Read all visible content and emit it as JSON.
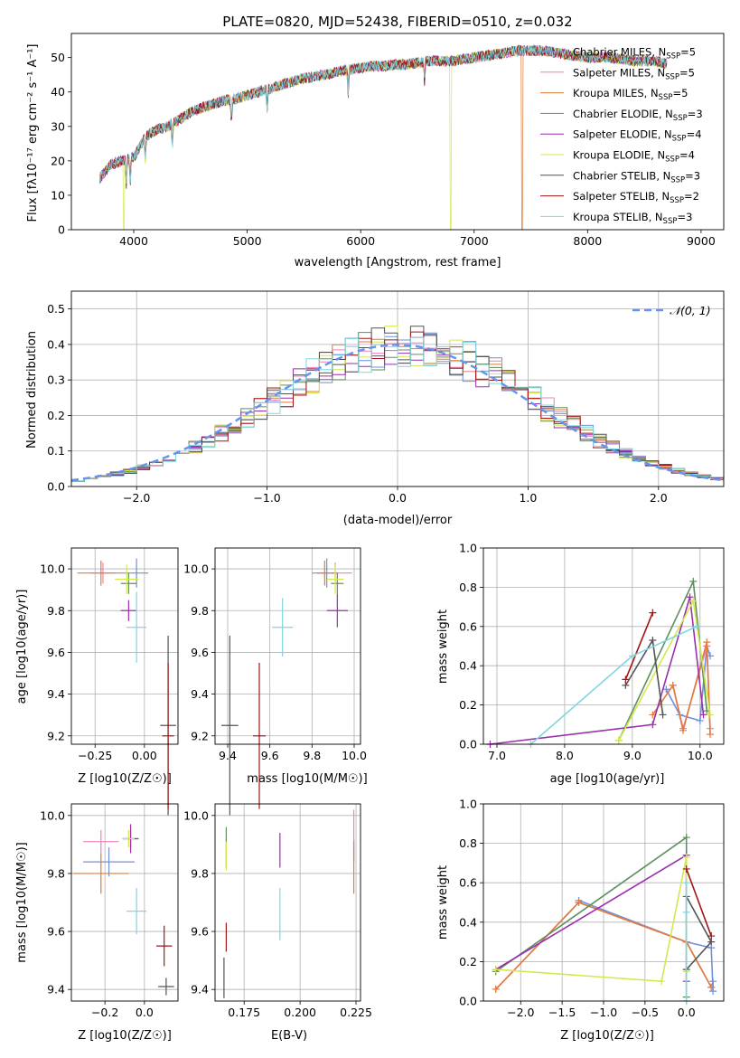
{
  "colors": {
    "chabrier_miles": "#6f8fdc",
    "salpeter_miles": "#f07fbe",
    "kroupa_miles": "#e07b39",
    "chabrier_elodie": "#5f8f5f",
    "salpeter_elodie": "#9b2fae",
    "kroupa_elodie": "#d4e84e",
    "chabrier_stelib": "#545454",
    "salpeter_stelib": "#a31515",
    "kroupa_stelib": "#7fd6e0",
    "normal_curve": "#6495ed",
    "grid": "#b0b0b0"
  },
  "chart_data": [
    {
      "id": "spectrum",
      "type": "line",
      "title": "PLATE=0820, MJD=52438, FIBERID=0510, z=0.032",
      "xlabel": "wavelength [Angstrom, rest frame]",
      "ylabel": "Flux [fλ10⁻¹⁷ erg cm⁻² s⁻¹ A⁻¹]",
      "xlim": [
        3450,
        9200
      ],
      "ylim": [
        0,
        57
      ],
      "xticks": [
        4000,
        5000,
        6000,
        7000,
        8000,
        9000
      ],
      "yticks": [
        0,
        10,
        20,
        30,
        40,
        50
      ],
      "grid": false,
      "legend_position": "top-right",
      "legend": [
        "Chabrier MILES, N_SSP=5",
        "Salpeter MILES, N_SSP=5",
        "Kroupa MILES, N_SSP=5",
        "Chabrier ELODIE, N_SSP=3",
        "Salpeter ELODIE, N_SSP=4",
        "Kroupa ELODIE, N_SSP=4",
        "Chabrier STELIB, N_SSP=3",
        "Salpeter STELIB, N_SSP=2",
        "Kroupa STELIB, N_SSP=3"
      ],
      "continuum": [
        [
          3700,
          15
        ],
        [
          3800,
          19
        ],
        [
          3900,
          20
        ],
        [
          4000,
          21
        ],
        [
          4100,
          27
        ],
        [
          4200,
          29
        ],
        [
          4300,
          30
        ],
        [
          4400,
          32
        ],
        [
          4500,
          34
        ],
        [
          4600,
          35.5
        ],
        [
          4700,
          36.5
        ],
        [
          4800,
          37.5
        ],
        [
          4900,
          38
        ],
        [
          5000,
          39
        ],
        [
          5100,
          40
        ],
        [
          5200,
          41
        ],
        [
          5300,
          42
        ],
        [
          5400,
          43
        ],
        [
          5500,
          44
        ],
        [
          5600,
          44.5
        ],
        [
          5700,
          45
        ],
        [
          5800,
          46
        ],
        [
          5900,
          46.5
        ],
        [
          6000,
          47
        ],
        [
          6100,
          47.5
        ],
        [
          6200,
          47.5
        ],
        [
          6300,
          48
        ],
        [
          6400,
          48
        ],
        [
          6500,
          48.5
        ],
        [
          6600,
          49
        ],
        [
          6700,
          49
        ],
        [
          6800,
          49
        ],
        [
          6900,
          49.5
        ],
        [
          7000,
          50
        ],
        [
          7200,
          51
        ],
        [
          7400,
          52
        ],
        [
          7600,
          52
        ],
        [
          7800,
          51
        ],
        [
          8000,
          50
        ],
        [
          8200,
          50
        ],
        [
          8400,
          49
        ],
        [
          8600,
          49
        ],
        [
          8700,
          48
        ]
      ]
    },
    {
      "id": "residuals",
      "type": "histogram",
      "xlabel": "(data-model)/error",
      "ylabel": "Normed distribution",
      "xlim": [
        -2.5,
        2.5
      ],
      "ylim": [
        0,
        0.55
      ],
      "xticks": [
        -2,
        -1,
        0,
        1,
        2
      ],
      "yticks": [
        0.0,
        0.1,
        0.2,
        0.3,
        0.4,
        0.5
      ],
      "grid": true,
      "legend_position": "top-right",
      "legend": [
        "𝒩(0, 1)"
      ],
      "bin_width": 0.1
    },
    {
      "id": "age_vs_Z",
      "type": "errorbar",
      "xlabel": "Z [log10(Z/Z☉)]",
      "ylabel": "age  [log10(age/yr)]",
      "xlim": [
        -0.37,
        0.17
      ],
      "ylim": [
        9.16,
        10.1
      ],
      "xticks": [
        -0.25,
        0.0
      ],
      "yticks": [
        9.2,
        9.4,
        9.6,
        9.8,
        10.0
      ],
      "grid": true,
      "points": [
        {
          "model": "chabrier_miles",
          "x": -0.04,
          "y": 9.98,
          "xerr": 0.06,
          "yerr": 0.07
        },
        {
          "model": "salpeter_miles",
          "x": -0.21,
          "y": 9.98,
          "xerr": 0.06,
          "yerr": 0.05
        },
        {
          "model": "kroupa_miles",
          "x": -0.22,
          "y": 9.98,
          "xerr": 0.12,
          "yerr": 0.06
        },
        {
          "model": "chabrier_elodie",
          "x": -0.08,
          "y": 9.93,
          "xerr": 0.04,
          "yerr": 0.05
        },
        {
          "model": "salpeter_elodie",
          "x": -0.08,
          "y": 9.8,
          "xerr": 0.04,
          "yerr": 0.05
        },
        {
          "model": "kroupa_elodie",
          "x": -0.09,
          "y": 9.95,
          "xerr": 0.06,
          "yerr": 0.07
        },
        {
          "model": "chabrier_stelib",
          "x": 0.12,
          "y": 9.25,
          "xerr": 0.04,
          "yerr": 0.43
        },
        {
          "model": "salpeter_stelib",
          "x": 0.12,
          "y": 9.2,
          "xerr": 0.03,
          "yerr": 0.35
        },
        {
          "model": "kroupa_stelib",
          "x": -0.04,
          "y": 9.72,
          "xerr": 0.05,
          "yerr": 0.17
        }
      ]
    },
    {
      "id": "age_vs_mass",
      "type": "errorbar",
      "xlabel": "mass [log10(M/M☉)]",
      "ylabel": "",
      "xlim": [
        9.34,
        10.03
      ],
      "ylim": [
        9.16,
        10.1
      ],
      "xticks": [
        9.4,
        9.6,
        9.8,
        10.0
      ],
      "yticks": [
        9.2,
        9.4,
        9.6,
        9.8,
        10.0
      ],
      "grid": true,
      "points": [
        {
          "model": "chabrier_miles",
          "x": 9.87,
          "y": 9.98,
          "xerr": 0.05,
          "yerr": 0.07
        },
        {
          "model": "salpeter_miles",
          "x": 9.91,
          "y": 9.98,
          "xerr": 0.08,
          "yerr": 0.05
        },
        {
          "model": "kroupa_miles",
          "x": 9.86,
          "y": 9.98,
          "xerr": 0.06,
          "yerr": 0.06
        },
        {
          "model": "chabrier_elodie",
          "x": 9.92,
          "y": 9.93,
          "xerr": 0.03,
          "yerr": 0.05
        },
        {
          "model": "salpeter_elodie",
          "x": 9.92,
          "y": 9.8,
          "xerr": 0.05,
          "yerr": 0.08
        },
        {
          "model": "kroupa_elodie",
          "x": 9.91,
          "y": 9.95,
          "xerr": 0.04,
          "yerr": 0.07
        },
        {
          "model": "chabrier_stelib",
          "x": 9.41,
          "y": 9.25,
          "xerr": 0.04,
          "yerr": 0.43
        },
        {
          "model": "salpeter_stelib",
          "x": 9.55,
          "y": 9.2,
          "xerr": 0.03,
          "yerr": 0.35
        },
        {
          "model": "kroupa_stelib",
          "x": 9.66,
          "y": 9.72,
          "xerr": 0.05,
          "yerr": 0.14
        }
      ]
    },
    {
      "id": "weight_vs_age",
      "type": "line",
      "xlabel": "age  [log10(age/yr)]",
      "ylabel": "mass weight",
      "xlim": [
        6.8,
        10.35
      ],
      "ylim": [
        0,
        1.0
      ],
      "xticks": [
        7,
        8,
        9,
        10
      ],
      "yticks": [
        0.0,
        0.2,
        0.4,
        0.6,
        0.8,
        1.0
      ],
      "grid": true,
      "series": [
        {
          "model": "chabrier_miles",
          "points": [
            [
              9.5,
              0.28
            ],
            [
              9.7,
              0.15
            ],
            [
              10.0,
              0.12
            ],
            [
              10.1,
              0.5
            ],
            [
              10.15,
              0.45
            ]
          ]
        },
        {
          "model": "salpeter_miles",
          "points": [
            [
              9.6,
              0.3
            ],
            [
              9.75,
              0.08
            ],
            [
              10.1,
              0.5
            ],
            [
              10.15,
              0.08
            ]
          ]
        },
        {
          "model": "kroupa_miles",
          "points": [
            [
              9.3,
              0.15
            ],
            [
              9.6,
              0.3
            ],
            [
              9.75,
              0.07
            ],
            [
              10.1,
              0.52
            ],
            [
              10.15,
              0.05
            ]
          ]
        },
        {
          "model": "chabrier_elodie",
          "points": [
            [
              8.8,
              0.02
            ],
            [
              9.9,
              0.83
            ],
            [
              10.1,
              0.17
            ]
          ]
        },
        {
          "model": "salpeter_elodie",
          "points": [
            [
              6.9,
              0.0
            ],
            [
              9.3,
              0.1
            ],
            [
              9.85,
              0.75
            ],
            [
              10.05,
              0.15
            ]
          ]
        },
        {
          "model": "kroupa_elodie",
          "points": [
            [
              8.8,
              0.02
            ],
            [
              9.9,
              0.73
            ],
            [
              10.15,
              0.15
            ]
          ]
        },
        {
          "model": "chabrier_stelib",
          "points": [
            [
              8.9,
              0.3
            ],
            [
              9.3,
              0.53
            ],
            [
              9.45,
              0.15
            ]
          ]
        },
        {
          "model": "salpeter_stelib",
          "points": [
            [
              8.9,
              0.33
            ],
            [
              9.3,
              0.67
            ]
          ]
        },
        {
          "model": "kroupa_stelib",
          "points": [
            [
              7.5,
              0.0
            ],
            [
              9.0,
              0.45
            ],
            [
              9.95,
              0.6
            ]
          ]
        }
      ]
    },
    {
      "id": "mass_vs_Z",
      "type": "errorbar",
      "xlabel": "Z [log10(Z/Z☉)]",
      "ylabel": "mass [log10(M/M☉)]",
      "xlim": [
        -0.37,
        0.17
      ],
      "ylim": [
        9.36,
        10.04
      ],
      "xticks": [
        -0.2,
        0.0
      ],
      "yticks": [
        9.4,
        9.6,
        9.8,
        10.0
      ],
      "grid": true,
      "points": [
        {
          "model": "chabrier_miles",
          "x": -0.18,
          "y": 9.84,
          "xerr": 0.13,
          "yerr": 0.05
        },
        {
          "model": "salpeter_miles",
          "x": -0.22,
          "y": 9.91,
          "xerr": 0.09,
          "yerr": 0.04
        },
        {
          "model": "kroupa_miles",
          "x": -0.22,
          "y": 9.8,
          "xerr": 0.14,
          "yerr": 0.07
        },
        {
          "model": "chabrier_elodie",
          "x": -0.07,
          "y": 9.92,
          "xerr": 0.04,
          "yerr": 0.03
        },
        {
          "model": "salpeter_elodie",
          "x": -0.07,
          "y": 9.92,
          "xerr": 0.04,
          "yerr": 0.05
        },
        {
          "model": "kroupa_elodie",
          "x": -0.08,
          "y": 9.92,
          "xerr": 0.03,
          "yerr": 0.03
        },
        {
          "model": "chabrier_stelib",
          "x": 0.11,
          "y": 9.41,
          "xerr": 0.04,
          "yerr": 0.03
        },
        {
          "model": "salpeter_stelib",
          "x": 0.1,
          "y": 9.55,
          "xerr": 0.04,
          "yerr": 0.07
        },
        {
          "model": "kroupa_stelib",
          "x": -0.04,
          "y": 9.67,
          "xerr": 0.05,
          "yerr": 0.08
        }
      ]
    },
    {
      "id": "mass_vs_ebv",
      "type": "errorbar",
      "xlabel": "E(B-V)",
      "ylabel": "",
      "xlim": [
        0.162,
        0.227
      ],
      "ylim": [
        9.36,
        10.04
      ],
      "xticks": [
        0.175,
        0.2,
        0.225
      ],
      "yticks": [
        9.4,
        9.6,
        9.8,
        10.0
      ],
      "grid": true,
      "points": [
        {
          "model": "chabrier_miles",
          "x": 0.224,
          "y": 9.88,
          "xerr": 0.0,
          "yerr": 0.04
        },
        {
          "model": "salpeter_miles",
          "x": 0.224,
          "y": 9.93,
          "xerr": 0.0,
          "yerr": 0.09
        },
        {
          "model": "kroupa_miles",
          "x": 0.224,
          "y": 9.82,
          "xerr": 0.0,
          "yerr": 0.09
        },
        {
          "model": "chabrier_elodie",
          "x": 0.167,
          "y": 9.89,
          "xerr": 0.0,
          "yerr": 0.07
        },
        {
          "model": "salpeter_elodie",
          "x": 0.191,
          "y": 9.88,
          "xerr": 0.0,
          "yerr": 0.06
        },
        {
          "model": "kroupa_elodie",
          "x": 0.167,
          "y": 9.86,
          "xerr": 0.0,
          "yerr": 0.05
        },
        {
          "model": "chabrier_stelib",
          "x": 0.166,
          "y": 9.44,
          "xerr": 0.0,
          "yerr": 0.07
        },
        {
          "model": "salpeter_stelib",
          "x": 0.167,
          "y": 9.58,
          "xerr": 0.0,
          "yerr": 0.05
        },
        {
          "model": "kroupa_stelib",
          "x": 0.191,
          "y": 9.66,
          "xerr": 0.0,
          "yerr": 0.09
        }
      ]
    },
    {
      "id": "weight_vs_Z",
      "type": "line",
      "xlabel": "Z [log10(Z/Z☉)]",
      "ylabel": "mass weight",
      "xlim": [
        -2.45,
        0.45
      ],
      "ylim": [
        0,
        1.0
      ],
      "xticks": [
        -2.0,
        -1.5,
        -1.0,
        -0.5,
        0.0
      ],
      "yticks": [
        0.0,
        0.2,
        0.4,
        0.6,
        0.8,
        1.0
      ],
      "grid": true,
      "series": [
        {
          "model": "chabrier_miles",
          "points": [
            [
              -1.3,
              0.51
            ],
            [
              0.0,
              0.3
            ],
            [
              0.3,
              0.27
            ],
            [
              0.32,
              0.05
            ],
            [
              0.32,
              0.1
            ]
          ]
        },
        {
          "model": "salpeter_miles",
          "points": [
            [
              -2.3,
              0.06
            ],
            [
              -1.3,
              0.5
            ],
            [
              0.0,
              0.3
            ],
            [
              0.3,
              0.07
            ]
          ]
        },
        {
          "model": "kroupa_miles",
          "points": [
            [
              -2.3,
              0.06
            ],
            [
              -1.3,
              0.5
            ],
            [
              0.0,
              0.3
            ],
            [
              0.3,
              0.07
            ]
          ]
        },
        {
          "model": "chabrier_elodie",
          "points": [
            [
              -2.3,
              0.15
            ],
            [
              0.0,
              0.83
            ],
            [
              0.0,
              0.02
            ]
          ]
        },
        {
          "model": "salpeter_elodie",
          "points": [
            [
              -2.3,
              0.16
            ],
            [
              0.0,
              0.74
            ],
            [
              0.0,
              0.1
            ]
          ]
        },
        {
          "model": "kroupa_elodie",
          "points": [
            [
              -2.3,
              0.16
            ],
            [
              -0.3,
              0.1
            ],
            [
              0.0,
              0.73
            ],
            [
              0.0,
              0.15
            ]
          ]
        },
        {
          "model": "chabrier_stelib",
          "points": [
            [
              0.0,
              0.16
            ],
            [
              0.3,
              0.3
            ],
            [
              0.0,
              0.53
            ]
          ]
        },
        {
          "model": "salpeter_stelib",
          "points": [
            [
              0.0,
              0.67
            ],
            [
              0.3,
              0.33
            ]
          ]
        },
        {
          "model": "kroupa_stelib",
          "points": [
            [
              0.0,
              0.0
            ],
            [
              0.0,
              0.45
            ],
            [
              0.0,
              0.6
            ]
          ]
        }
      ]
    }
  ]
}
